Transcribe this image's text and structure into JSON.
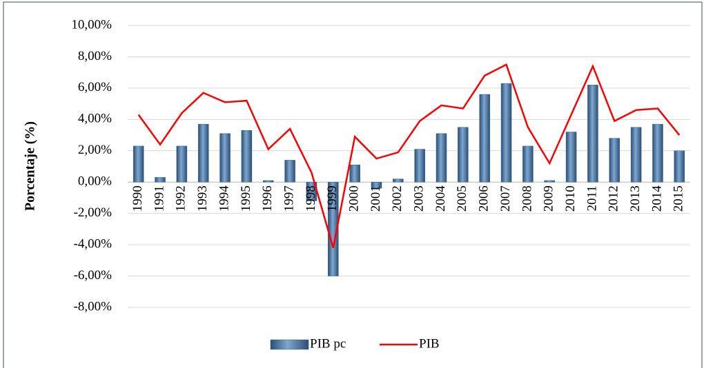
{
  "chart_data": {
    "type": "bar-line",
    "y_label": "Porcentaje (%)",
    "categories": [
      "1990",
      "1991",
      "1992",
      "1993",
      "1994",
      "1995",
      "1996",
      "1997",
      "1998",
      "1999",
      "2000",
      "2001",
      "2002",
      "2003",
      "2004",
      "2005",
      "2006",
      "2007",
      "2008",
      "2009",
      "2010",
      "2011",
      "2012",
      "2013",
      "2014",
      "2015"
    ],
    "series": [
      {
        "name": "PIB pc",
        "type": "bar",
        "color": "#4f7aa5",
        "values": [
          2.3,
          0.3,
          2.3,
          3.7,
          3.1,
          3.3,
          0.1,
          1.4,
          -1.2,
          -6.0,
          1.1,
          -0.4,
          0.2,
          2.1,
          3.1,
          3.5,
          5.6,
          6.3,
          2.3,
          0.1,
          3.2,
          6.2,
          2.8,
          3.5,
          3.7,
          2.0
        ]
      },
      {
        "name": "PIB",
        "type": "line",
        "color": "#ff0000",
        "values": [
          4.3,
          2.4,
          4.4,
          5.7,
          5.1,
          5.2,
          2.1,
          3.4,
          0.6,
          -4.2,
          2.9,
          1.5,
          1.9,
          3.9,
          4.9,
          4.7,
          6.8,
          7.5,
          3.5,
          1.2,
          4.3,
          7.4,
          3.9,
          4.6,
          4.7,
          3.0
        ]
      }
    ],
    "ylim": [
      -8,
      10
    ],
    "yticks": [
      {
        "value": 10,
        "label": "10,00%"
      },
      {
        "value": 8,
        "label": "8,00%"
      },
      {
        "value": 6,
        "label": "6,00%"
      },
      {
        "value": 4,
        "label": "4,00%"
      },
      {
        "value": 2,
        "label": "2,00%"
      },
      {
        "value": 0,
        "label": "0,00%"
      },
      {
        "value": -2,
        "label": "-2,00%"
      },
      {
        "value": -4,
        "label": "-4,00%"
      },
      {
        "value": -6,
        "label": "-6,00%"
      },
      {
        "value": -8,
        "label": "-8,00%"
      }
    ],
    "grid": true
  }
}
